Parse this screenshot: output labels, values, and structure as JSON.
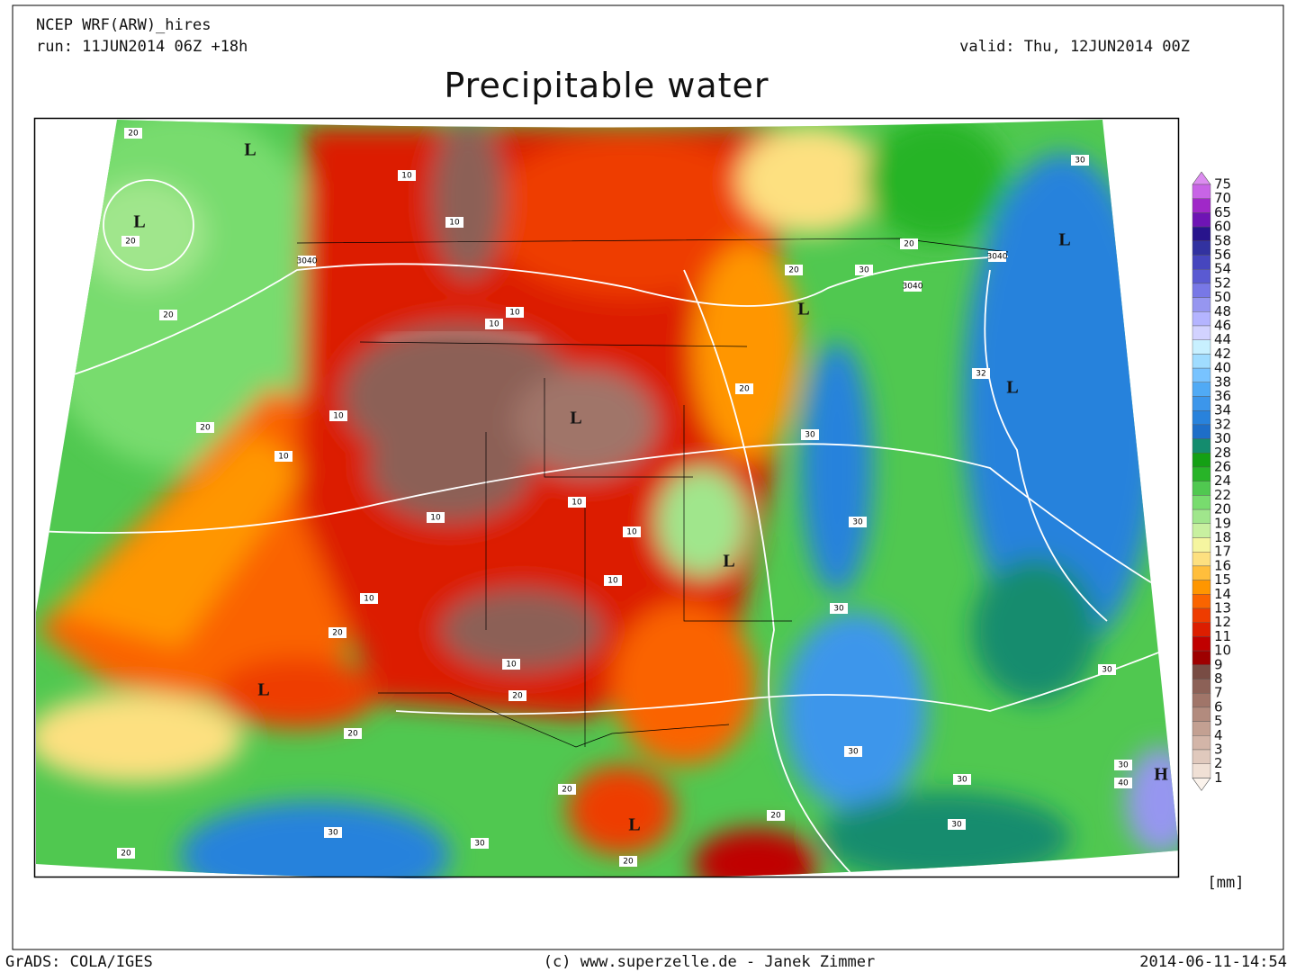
{
  "header": {
    "model": "NCEP WRF(ARW)_hires",
    "run": "run: 11JUN2014 06Z +18h",
    "valid": "valid: Thu, 12JUN2014 00Z",
    "title": "Precipitable water"
  },
  "colorbar": {
    "labels": [
      "75",
      "70",
      "65",
      "60",
      "58",
      "56",
      "54",
      "52",
      "50",
      "48",
      "46",
      "44",
      "42",
      "40",
      "38",
      "36",
      "34",
      "32",
      "30",
      "28",
      "26",
      "24",
      "22",
      "20",
      "19",
      "18",
      "17",
      "16",
      "15",
      "14",
      "13",
      "12",
      "11",
      "10",
      "9",
      "8",
      "7",
      "6",
      "5",
      "4",
      "3",
      "2",
      "1"
    ],
    "colors": [
      "#dc8cf0",
      "#c864e6",
      "#a028c8",
      "#6e14b4",
      "#28148c",
      "#3232a0",
      "#4646be",
      "#5a5ad2",
      "#7878e6",
      "#9696f0",
      "#b4b4ff",
      "#d2d2ff",
      "#c8f0ff",
      "#a0dcff",
      "#78c3ff",
      "#50aaf5",
      "#3c96eb",
      "#2882dc",
      "#1e6ec8",
      "#148c6e",
      "#14a014",
      "#28b428",
      "#50c850",
      "#78dc6e",
      "#a0e68c",
      "#c8f0a0",
      "#f5f5a0",
      "#fde080",
      "#ffbe3c",
      "#ff9600",
      "#fa6400",
      "#ee3c00",
      "#dc1e00",
      "#c00000",
      "#9e0000",
      "#784c44",
      "#8c6157",
      "#a07569",
      "#b28b7e",
      "#c3a092",
      "#d3b5a8",
      "#e0c9bd",
      "#f0e0d5",
      "#fbf3ec"
    ],
    "unit": "[mm]"
  },
  "map": {
    "systems": [
      "L",
      "L",
      "L",
      "L",
      "L",
      "L",
      "L",
      "L",
      "L",
      "H"
    ],
    "contour_labels": [
      "3040",
      "3040",
      "3040",
      "10",
      "10",
      "10",
      "10",
      "10",
      "10",
      "10",
      "10",
      "10",
      "10",
      "10",
      "10",
      "20",
      "20",
      "20",
      "20",
      "20",
      "20",
      "20",
      "20",
      "20",
      "20",
      "20",
      "20",
      "20",
      "20",
      "30",
      "30",
      "30",
      "30",
      "30",
      "30",
      "30",
      "30",
      "30",
      "30",
      "30",
      "30",
      "40",
      "32"
    ]
  },
  "footer": {
    "left": "GrADS: COLA/IGES",
    "center": "(c) www.superzelle.de - Janek Zimmer",
    "right": "2014-06-11-14:54"
  }
}
